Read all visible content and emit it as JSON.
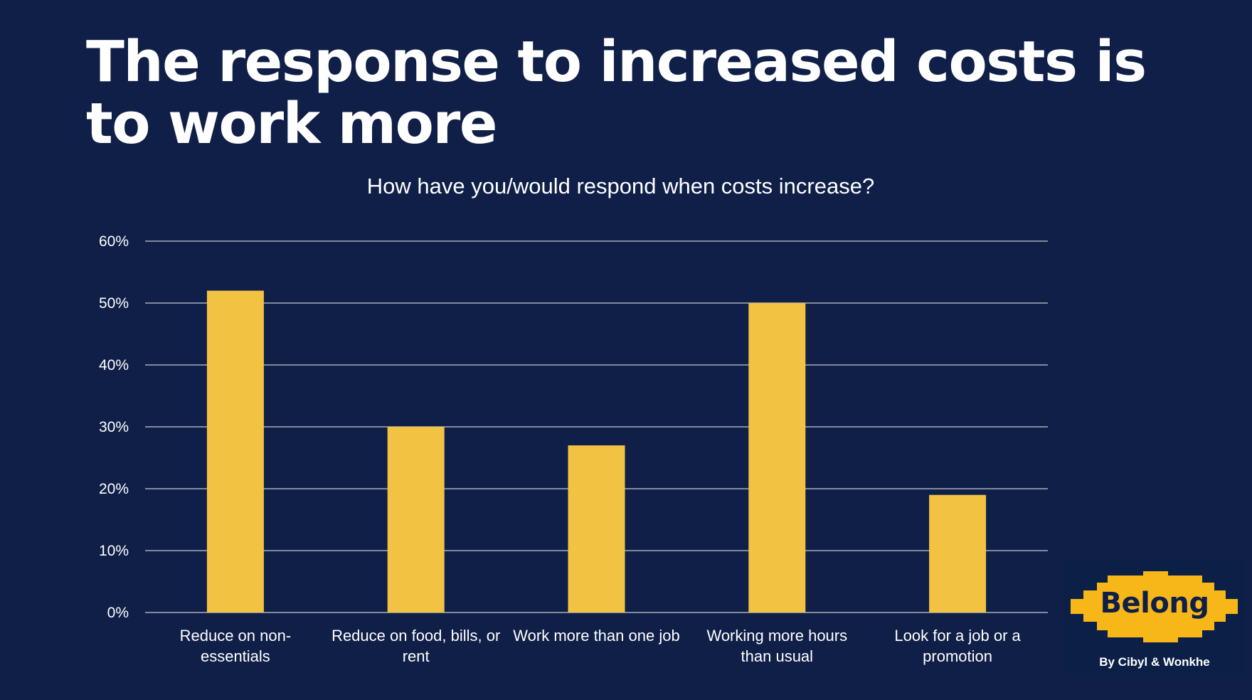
{
  "slide": {
    "title": "The response to increased costs is to work more",
    "background_color": "#0F1F48"
  },
  "chart_data": {
    "type": "bar",
    "title": "How have you/would respond when costs increase?",
    "xlabel": "",
    "ylabel": "",
    "categories": [
      [
        "Reduce on non-",
        "essentials"
      ],
      [
        "Reduce on food, bills, or",
        "rent"
      ],
      [
        "Work more than one job"
      ],
      [
        "Working more hours",
        "than usual"
      ],
      [
        "Look for a job or a",
        "promotion"
      ]
    ],
    "category_names": [
      "Reduce on non-essentials",
      "Reduce on food, bills, or rent",
      "Work more than one job",
      "Working more hours than usual",
      "Look for a job or a promotion"
    ],
    "values": [
      52,
      30,
      27,
      50,
      19
    ],
    "value_unit": "%",
    "ylim": [
      0,
      60
    ],
    "yticks": [
      0,
      10,
      20,
      30,
      40,
      50,
      60
    ],
    "ytick_labels": [
      "0%",
      "10%",
      "20%",
      "30%",
      "40%",
      "50%",
      "60%"
    ],
    "grid": true,
    "legend": "none",
    "bar_color": "#F2C343",
    "grid_color": "#A9ADB8"
  },
  "logo": {
    "icon": "belong-logo-icon",
    "wordmark": "Belong",
    "byline": "By Cibyl & Wonkhe",
    "color": "#F7B718"
  }
}
